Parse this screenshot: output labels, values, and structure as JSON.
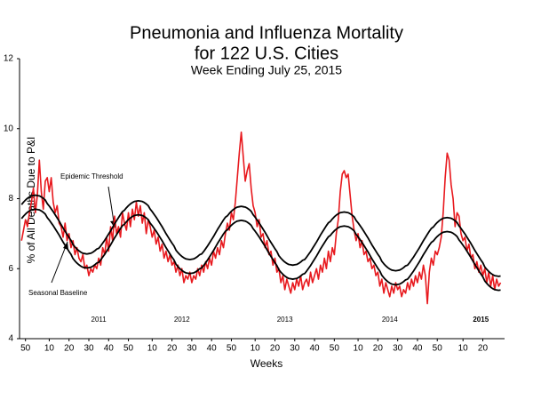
{
  "chart_data": {
    "type": "line",
    "title_lines": [
      "Pneumonia and Influenza Mortality",
      "for 122 U.S. Cities"
    ],
    "subtitle": "Week Ending  July 25, 2015",
    "x_label": "Weeks",
    "y_label": "% of All Deaths Due to P&I",
    "year_labels": [
      "2011",
      "2012",
      "2013",
      "2014",
      "2015"
    ],
    "ylim": [
      4,
      12
    ],
    "yticks": [
      4,
      6,
      8,
      10,
      12
    ],
    "grid": false,
    "categories": [
      null,
      null,
      "50",
      null,
      null,
      null,
      null,
      null,
      null,
      null,
      null,
      null,
      null,
      null,
      "10",
      null,
      null,
      null,
      null,
      null,
      null,
      null,
      null,
      null,
      "20",
      null,
      null,
      null,
      null,
      null,
      null,
      null,
      null,
      null,
      "30",
      null,
      null,
      null,
      null,
      null,
      null,
      null,
      null,
      null,
      "40",
      null,
      null,
      null,
      null,
      null,
      null,
      null,
      null,
      null,
      "50",
      null,
      null,
      null,
      null,
      null,
      null,
      null,
      null,
      null,
      null,
      null,
      "10",
      null,
      null,
      null,
      null,
      null,
      null,
      null,
      null,
      null,
      "20",
      null,
      null,
      null,
      null,
      null,
      null,
      null,
      null,
      null,
      "30",
      null,
      null,
      null,
      null,
      null,
      null,
      null,
      null,
      null,
      "40",
      null,
      null,
      null,
      null,
      null,
      null,
      null,
      null,
      null,
      "50",
      null,
      null,
      null,
      null,
      null,
      null,
      null,
      null,
      null,
      null,
      null,
      "10",
      null,
      null,
      null,
      null,
      null,
      null,
      null,
      null,
      null,
      "20",
      null,
      null,
      null,
      null,
      null,
      null,
      null,
      null,
      null,
      "30",
      null,
      null,
      null,
      null,
      null,
      null,
      null,
      null,
      null,
      "40",
      null,
      null,
      null,
      null,
      null,
      null,
      null,
      null,
      null,
      "50",
      null,
      null,
      null,
      null,
      null,
      null,
      null,
      null,
      null,
      null,
      null,
      "10",
      null,
      null,
      null,
      null,
      null,
      null,
      null,
      null,
      null,
      "20",
      null,
      null,
      null,
      null,
      null,
      null,
      null,
      null,
      null,
      "30",
      null,
      null,
      null,
      null,
      null,
      null,
      null,
      null,
      null,
      "40",
      null,
      null,
      null,
      null,
      null,
      null,
      null,
      null,
      null,
      "50",
      null,
      null,
      null,
      null,
      null,
      null,
      null,
      null,
      null,
      null,
      null,
      null,
      "10",
      null,
      null,
      null,
      null,
      null,
      null,
      null,
      null,
      null,
      "20",
      null,
      null,
      null,
      null,
      null,
      null,
      null,
      null,
      null
    ],
    "series": [
      {
        "color": "#e8191e",
        "values": [
          6.8,
          7.1,
          7.4,
          7.2,
          7.6,
          7.9,
          8.3,
          7.6,
          8.1,
          9.1,
          8.2,
          7.7,
          8.5,
          8.6,
          8.2,
          8.6,
          7.9,
          7.6,
          7.8,
          7.3,
          7.2,
          6.9,
          7.3,
          6.8,
          7.0,
          6.6,
          6.8,
          6.4,
          6.6,
          6.3,
          6.2,
          6.4,
          6.0,
          6.1,
          5.8,
          6.0,
          5.9,
          6.1,
          6.0,
          6.3,
          6.1,
          6.6,
          6.4,
          6.9,
          6.5,
          7.2,
          6.8,
          7.5,
          7.0,
          7.2,
          6.9,
          7.6,
          7.3,
          7.1,
          7.6,
          7.2,
          7.7,
          7.4,
          7.9,
          7.5,
          7.8,
          7.3,
          7.6,
          7.0,
          7.4,
          7.2,
          6.9,
          7.1,
          6.7,
          6.9,
          6.5,
          6.7,
          6.3,
          6.5,
          6.2,
          6.4,
          6.1,
          6.2,
          5.9,
          6.1,
          5.8,
          6.0,
          5.6,
          5.8,
          5.7,
          5.9,
          5.6,
          5.8,
          5.7,
          6.0,
          5.8,
          6.1,
          5.9,
          6.2,
          6.0,
          6.3,
          6.1,
          6.5,
          6.3,
          6.6,
          6.4,
          6.8,
          6.6,
          7.0,
          7.3,
          7.1,
          7.6,
          7.4,
          7.9,
          8.6,
          9.3,
          9.9,
          9.2,
          8.5,
          8.8,
          9.0,
          8.3,
          7.8,
          7.6,
          7.2,
          7.4,
          6.9,
          7.0,
          6.6,
          6.8,
          6.4,
          6.5,
          6.1,
          6.3,
          5.9,
          6.0,
          5.6,
          5.8,
          5.4,
          5.7,
          5.5,
          5.3,
          5.6,
          5.4,
          5.7,
          5.5,
          5.8,
          5.4,
          5.6,
          5.7,
          5.5,
          5.9,
          5.6,
          5.8,
          6.0,
          5.7,
          6.1,
          5.9,
          6.3,
          6.0,
          6.5,
          6.2,
          6.6,
          6.4,
          7.0,
          7.4,
          8.2,
          8.7,
          8.8,
          8.6,
          8.7,
          8.1,
          7.5,
          7.1,
          6.8,
          7.0,
          6.6,
          6.8,
          6.4,
          6.5,
          6.2,
          6.3,
          6.0,
          6.1,
          5.8,
          5.9,
          5.5,
          5.7,
          5.3,
          5.6,
          5.4,
          5.2,
          5.5,
          5.3,
          5.6,
          5.4,
          5.5,
          5.2,
          5.4,
          5.3,
          5.6,
          5.4,
          5.7,
          5.5,
          5.8,
          5.6,
          5.9,
          5.7,
          6.1,
          5.8,
          5.0,
          5.9,
          6.3,
          6.1,
          6.5,
          6.4,
          6.6,
          6.9,
          7.6,
          8.6,
          9.3,
          9.1,
          8.4,
          8.0,
          7.2,
          7.6,
          7.5,
          7.0,
          6.8,
          6.9,
          6.5,
          6.7,
          6.3,
          6.4,
          6.0,
          6.2,
          5.9,
          6.1,
          5.8,
          6.0,
          5.6,
          5.9,
          5.5,
          5.8,
          5.4,
          5.7,
          5.5,
          5.6
        ]
      },
      {
        "name": "Seasonal Baseline",
        "color": "#000000",
        "values": [
          7.43,
          7.5,
          7.56,
          7.61,
          7.65,
          7.68,
          7.69,
          7.7,
          7.69,
          7.68,
          7.65,
          7.61,
          7.56,
          7.46,
          7.39,
          7.31,
          7.23,
          7.14,
          7.05,
          6.96,
          6.86,
          6.76,
          6.67,
          6.58,
          6.49,
          6.41,
          6.29,
          6.22,
          6.16,
          6.11,
          6.07,
          6.04,
          6.03,
          6.02,
          6.03,
          6.04,
          6.07,
          6.11,
          6.16,
          6.18,
          6.25,
          6.33,
          6.41,
          6.5,
          6.59,
          6.68,
          6.78,
          6.88,
          6.97,
          7.06,
          7.15,
          7.23,
          7.27,
          7.34,
          7.4,
          7.45,
          7.49,
          7.52,
          7.53,
          7.54,
          7.53,
          7.52,
          7.49,
          7.45,
          7.4,
          7.3,
          7.23,
          7.15,
          7.07,
          6.98,
          6.89,
          6.8,
          6.7,
          6.6,
          6.51,
          6.42,
          6.33,
          6.25,
          6.13,
          6.06,
          6.0,
          5.95,
          5.91,
          5.88,
          5.87,
          5.86,
          5.87,
          5.88,
          5.91,
          5.95,
          6.0,
          6.02,
          6.09,
          6.17,
          6.25,
          6.34,
          6.43,
          6.52,
          6.62,
          6.72,
          6.81,
          6.9,
          6.99,
          7.07,
          7.11,
          7.18,
          7.24,
          7.29,
          7.33,
          7.36,
          7.37,
          7.38,
          7.37,
          7.36,
          7.33,
          7.29,
          7.24,
          7.14,
          7.07,
          6.99,
          6.91,
          6.82,
          6.73,
          6.64,
          6.54,
          6.44,
          6.35,
          6.26,
          6.17,
          6.09,
          5.97,
          5.9,
          5.84,
          5.79,
          5.75,
          5.72,
          5.71,
          5.7,
          5.71,
          5.72,
          5.75,
          5.79,
          5.84,
          5.86,
          5.93,
          6.01,
          6.09,
          6.18,
          6.27,
          6.36,
          6.46,
          6.56,
          6.65,
          6.74,
          6.83,
          6.91,
          6.95,
          7.02,
          7.08,
          7.13,
          7.17,
          7.2,
          7.21,
          7.22,
          7.21,
          7.2,
          7.17,
          7.13,
          7.08,
          6.98,
          6.91,
          6.83,
          6.75,
          6.66,
          6.57,
          6.48,
          6.38,
          6.28,
          6.19,
          6.1,
          6.01,
          5.93,
          5.81,
          5.74,
          5.68,
          5.63,
          5.59,
          5.56,
          5.55,
          5.54,
          5.55,
          5.56,
          5.59,
          5.63,
          5.68,
          5.7,
          5.77,
          5.85,
          5.93,
          6.02,
          6.11,
          6.2,
          6.3,
          6.4,
          6.49,
          6.58,
          6.67,
          6.75,
          6.79,
          6.86,
          6.92,
          6.97,
          7.01,
          7.04,
          7.05,
          7.06,
          7.05,
          7.04,
          7.01,
          6.97,
          6.92,
          6.82,
          6.75,
          6.67,
          6.59,
          6.5,
          6.41,
          6.32,
          6.22,
          6.12,
          6.03,
          5.94,
          5.85,
          5.77,
          5.65,
          5.58,
          5.52,
          5.47,
          5.43,
          5.4,
          5.39,
          5.38,
          5.39
        ]
      },
      {
        "name": "Epidemic Threshold",
        "color": "#000000",
        "values": [
          7.83,
          7.9,
          7.96,
          8.01,
          8.05,
          8.08,
          8.09,
          8.1,
          8.09,
          8.08,
          8.05,
          8.01,
          7.96,
          7.86,
          7.79,
          7.71,
          7.63,
          7.54,
          7.45,
          7.36,
          7.26,
          7.16,
          7.07,
          6.98,
          6.89,
          6.81,
          6.69,
          6.62,
          6.56,
          6.51,
          6.47,
          6.44,
          6.43,
          6.42,
          6.43,
          6.44,
          6.47,
          6.51,
          6.56,
          6.58,
          6.65,
          6.73,
          6.81,
          6.9,
          6.99,
          7.08,
          7.18,
          7.28,
          7.37,
          7.46,
          7.55,
          7.63,
          7.67,
          7.74,
          7.8,
          7.85,
          7.89,
          7.92,
          7.93,
          7.94,
          7.93,
          7.92,
          7.89,
          7.85,
          7.8,
          7.7,
          7.63,
          7.55,
          7.47,
          7.38,
          7.29,
          7.2,
          7.1,
          7.0,
          6.91,
          6.82,
          6.73,
          6.65,
          6.53,
          6.46,
          6.4,
          6.35,
          6.31,
          6.28,
          6.27,
          6.26,
          6.27,
          6.28,
          6.31,
          6.35,
          6.4,
          6.42,
          6.49,
          6.57,
          6.65,
          6.74,
          6.83,
          6.92,
          7.02,
          7.12,
          7.21,
          7.3,
          7.39,
          7.47,
          7.51,
          7.58,
          7.64,
          7.69,
          7.73,
          7.76,
          7.77,
          7.78,
          7.77,
          7.76,
          7.73,
          7.69,
          7.64,
          7.54,
          7.47,
          7.39,
          7.31,
          7.22,
          7.13,
          7.04,
          6.94,
          6.84,
          6.75,
          6.66,
          6.57,
          6.49,
          6.37,
          6.3,
          6.24,
          6.19,
          6.15,
          6.12,
          6.11,
          6.1,
          6.11,
          6.12,
          6.15,
          6.19,
          6.24,
          6.26,
          6.33,
          6.41,
          6.49,
          6.58,
          6.67,
          6.76,
          6.86,
          6.96,
          7.05,
          7.14,
          7.23,
          7.31,
          7.35,
          7.42,
          7.48,
          7.53,
          7.57,
          7.6,
          7.61,
          7.62,
          7.61,
          7.6,
          7.57,
          7.53,
          7.48,
          7.38,
          7.31,
          7.23,
          7.15,
          7.06,
          6.97,
          6.88,
          6.78,
          6.68,
          6.59,
          6.5,
          6.41,
          6.33,
          6.21,
          6.14,
          6.08,
          6.03,
          5.99,
          5.96,
          5.95,
          5.94,
          5.95,
          5.96,
          5.99,
          6.03,
          6.08,
          6.1,
          6.17,
          6.25,
          6.33,
          6.42,
          6.51,
          6.6,
          6.7,
          6.8,
          6.89,
          6.98,
          7.07,
          7.15,
          7.19,
          7.26,
          7.32,
          7.37,
          7.41,
          7.44,
          7.45,
          7.46,
          7.45,
          7.44,
          7.41,
          7.37,
          7.32,
          7.22,
          7.15,
          7.07,
          6.99,
          6.9,
          6.81,
          6.72,
          6.62,
          6.52,
          6.43,
          6.34,
          6.25,
          6.17,
          6.05,
          5.98,
          5.92,
          5.87,
          5.83,
          5.8,
          5.79,
          5.78,
          5.79
        ]
      }
    ]
  }
}
